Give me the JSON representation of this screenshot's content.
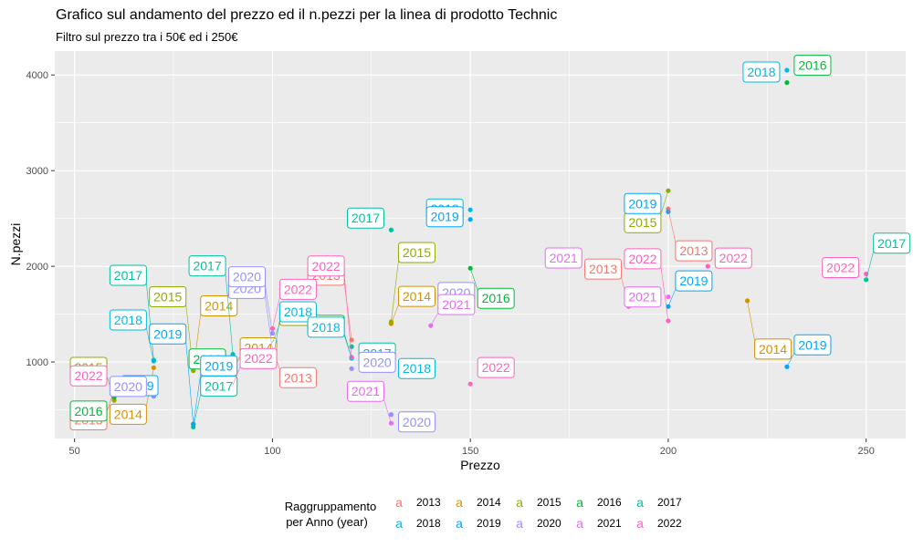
{
  "chart_data": {
    "type": "scatter",
    "title": "Grafico sul andamento del prezzo ed il n.pezzi per la linea di prodotto Technic",
    "subtitle": "Filtro sul prezzo tra i 50€ ed i 250€",
    "xlabel": "Prezzo",
    "ylabel": "N.pezzi",
    "xlim": [
      45,
      260
    ],
    "ylim": [
      200,
      4250
    ],
    "x_ticks": [
      "50",
      "100",
      "150",
      "200",
      "250"
    ],
    "y_ticks": [
      "1000",
      "2000",
      "3000",
      "4000"
    ],
    "grid": true,
    "legend_placement": "bottom",
    "legend_title_line1": "Raggruppamento",
    "legend_title_line2": "per Anno (year)",
    "legend_glyph": "a",
    "colors": {
      "2013": "#F8766D",
      "2014": "#D39200",
      "2015": "#93AA00",
      "2016": "#00BA38",
      "2017": "#00C19F",
      "2018": "#00B9E3",
      "2019": "#00A5FF",
      "2020": "#9590FF",
      "2021": "#E76BF3",
      "2022": "#FF62BC"
    },
    "series": [
      {
        "name": "2013",
        "points": [
          [
            60,
            710,
            -1,
            22,
            "2013"
          ],
          [
            100,
            1150,
            1,
            22,
            "2013"
          ],
          [
            120,
            1230,
            -1,
            -82,
            "2013"
          ],
          [
            190,
            1580,
            -1,
            -52,
            "2013"
          ],
          [
            200,
            2600,
            1,
            35,
            "2013"
          ]
        ]
      },
      {
        "name": "2014",
        "points": [
          [
            70,
            940,
            -1,
            40,
            "2014"
          ],
          [
            80,
            910,
            1,
            -82,
            "2014"
          ],
          [
            90,
            900,
            1,
            -37,
            "2014"
          ],
          [
            130,
            1400,
            1,
            -41,
            "2014"
          ],
          [
            220,
            1640,
            1,
            42,
            "2014"
          ]
        ]
      },
      {
        "name": "2015",
        "points": [
          [
            60,
            600,
            -1,
            -47,
            "2015"
          ],
          [
            80,
            910,
            -1,
            -92,
            "2015"
          ],
          [
            100,
            1200,
            1,
            -41,
            "2015"
          ],
          [
            130,
            1420,
            1,
            -87,
            "2015"
          ],
          [
            200,
            2790,
            -1,
            24,
            "2015"
          ]
        ]
      },
      {
        "name": "2016",
        "points": [
          [
            60,
            630,
            -1,
            4,
            "2016"
          ],
          [
            90,
            1060,
            -1,
            -8,
            "2016"
          ],
          [
            120,
            1040,
            -1,
            -47,
            "2016"
          ],
          [
            150,
            1980,
            1,
            22,
            "2016"
          ],
          [
            230,
            3920,
            1,
            -30,
            "2016"
          ]
        ]
      },
      {
        "name": "2017",
        "points": [
          [
            70,
            1020,
            -1,
            -104,
            "2017"
          ],
          [
            80,
            320,
            1,
            -56,
            "2017"
          ],
          [
            90,
            1080,
            -1,
            -108,
            "2017"
          ],
          [
            120,
            1160,
            1,
            -4,
            "2017"
          ],
          [
            130,
            2380,
            -1,
            -24,
            "2017"
          ],
          [
            250,
            1860,
            1,
            -51,
            "2017"
          ]
        ]
      },
      {
        "name": "2018",
        "points": [
          [
            70,
            1010,
            -1,
            -56,
            "2018"
          ],
          [
            100,
            1000,
            1,
            -66,
            "2018"
          ],
          [
            120,
            1040,
            -1,
            -45,
            "2018"
          ],
          [
            130,
            970,
            1,
            -7,
            "2018"
          ],
          [
            150,
            2590,
            -1,
            -12,
            "2018"
          ],
          [
            230,
            4050,
            -1,
            -9,
            "2018"
          ]
        ]
      },
      {
        "name": "2019",
        "points": [
          [
            60,
            820,
            1,
            -4,
            "2019"
          ],
          [
            80,
            350,
            -1,
            -110,
            "2019"
          ],
          [
            80,
            350,
            1,
            -75,
            "2019"
          ],
          [
            150,
            2490,
            -1,
            -14,
            "2019"
          ],
          [
            200,
            2570,
            -1,
            -20,
            "2019"
          ],
          [
            200,
            1580,
            1,
            -39,
            "2019"
          ],
          [
            230,
            950,
            1,
            -35,
            "2019"
          ]
        ]
      },
      {
        "name": "2020",
        "points": [
          [
            70,
            640,
            -1,
            -22,
            "2020"
          ],
          [
            100,
            1130,
            -1,
            -78,
            "2020"
          ],
          [
            100,
            1300,
            -1,
            -73,
            "2020"
          ],
          [
            120,
            930,
            1,
            -18,
            "2020"
          ],
          [
            130,
            450,
            1,
            -3,
            "2020"
          ],
          [
            140,
            1640,
            1,
            -20,
            "2020"
          ]
        ]
      },
      {
        "name": "2021",
        "points": [
          [
            130,
            360,
            -1,
            -46,
            "2021"
          ],
          [
            140,
            1380,
            1,
            -34,
            "2021"
          ],
          [
            180,
            2020,
            -1,
            -18,
            "2021"
          ],
          [
            200,
            1680,
            -1,
            -11,
            "2021"
          ]
        ]
      },
      {
        "name": "2022",
        "points": [
          [
            60,
            760,
            -1,
            -21,
            "2022"
          ],
          [
            90,
            760,
            1,
            -40,
            "2022"
          ],
          [
            100,
            1350,
            1,
            -54,
            "2022"
          ],
          [
            120,
            1050,
            -1,
            -111,
            "2022"
          ],
          [
            150,
            770,
            1,
            -29,
            "2022"
          ],
          [
            200,
            1430,
            -1,
            -79,
            "2022"
          ],
          [
            210,
            2000,
            1,
            -20,
            "2022"
          ],
          [
            250,
            1920,
            -1,
            -18,
            "2022"
          ]
        ]
      }
    ]
  }
}
